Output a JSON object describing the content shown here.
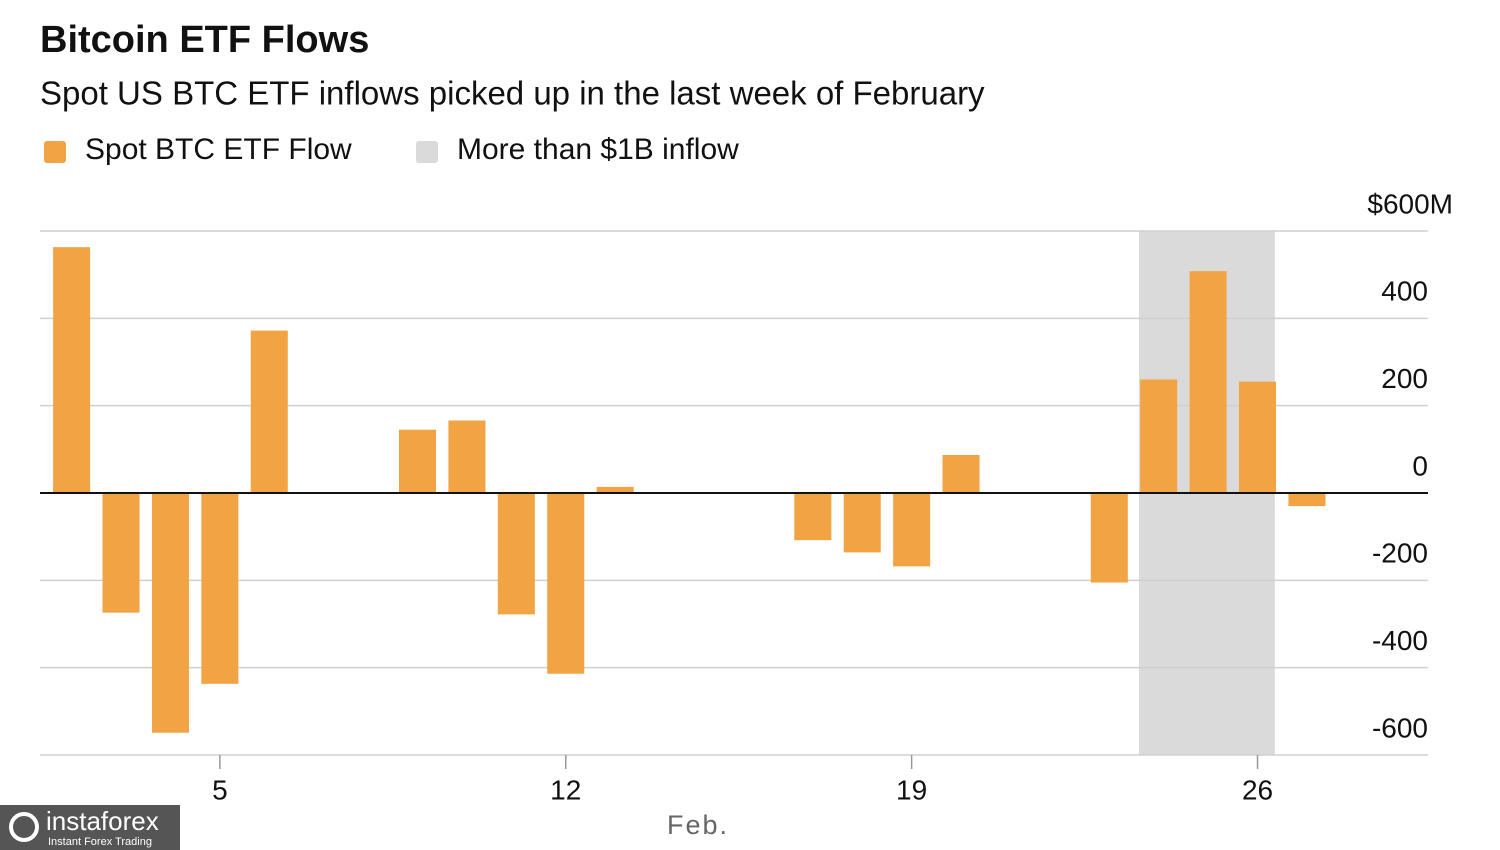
{
  "chart_data": {
    "type": "bar",
    "title": "Bitcoin ETF Flows",
    "subtitle": "Spot US BTC ETF inflows picked up in the last week of February",
    "x_label": "Feb.",
    "x": [
      2,
      3,
      4,
      5,
      6,
      9,
      10,
      11,
      12,
      13,
      17,
      18,
      19,
      20,
      23,
      24,
      25,
      26,
      27
    ],
    "series": [
      {
        "name": "Spot BTC ETF Flow",
        "color": "#f2a444",
        "values": [
          563,
          -274,
          -549,
          -437,
          372,
          145,
          166,
          -278,
          -414,
          14,
          -108,
          -136,
          -168,
          87,
          -205,
          260,
          508,
          255,
          -30
        ]
      }
    ],
    "highlight": {
      "name": "More than $1B inflow",
      "color": "#dadada",
      "from": 23.6,
      "to": 26.35
    },
    "xlim": [
      1.36,
      29.45
    ],
    "xticks": [
      5,
      12,
      19,
      26
    ],
    "ylim": [
      -600,
      600
    ],
    "yticks": [
      {
        "value": 600,
        "label": "$600M"
      },
      400,
      200,
      0,
      -200,
      -400,
      -600
    ],
    "grid": true,
    "watermark": {
      "brand": "instaforex",
      "tagline": "Instant Forex Trading"
    }
  }
}
